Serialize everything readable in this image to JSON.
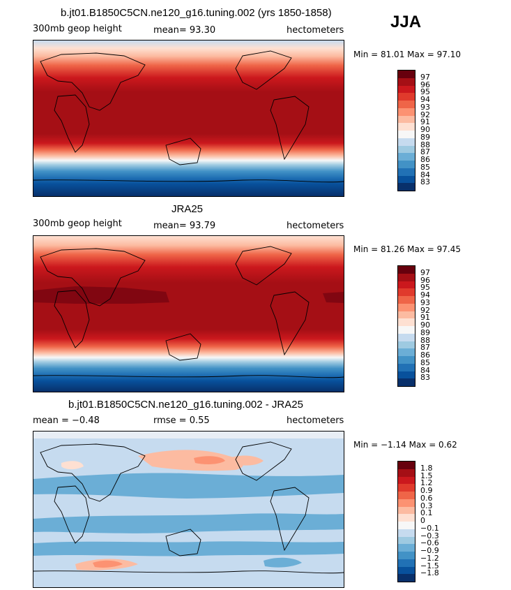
{
  "season": "JJA",
  "panels": [
    {
      "title": "b.jt01.B1850C5CN.ne120_g16.tuning.002 (yrs 1850-1858)",
      "left_label": "300mb geop height",
      "center_label": "mean=  93.30",
      "right_label": "hectometers",
      "minmax": "Min =  81.01 Max =  97.10",
      "colorbar_labels": [
        "97",
        "96",
        "95",
        "94",
        "93",
        "92",
        "91",
        "90",
        "89",
        "88",
        "87",
        "86",
        "85",
        "84",
        "83"
      ],
      "colorbar_colors": [
        "#67000d",
        "#a50f15",
        "#cb181d",
        "#e03a2c",
        "#ef6548",
        "#fc9272",
        "#fcbba1",
        "#fee0d2",
        "#f7f7f7",
        "#c6dbef",
        "#9ecae1",
        "#6baed6",
        "#4292c6",
        "#2171b5",
        "#08519c",
        "#08306b"
      ]
    },
    {
      "title": "JRA25",
      "left_label": "300mb geop height",
      "center_label": "mean=  93.79",
      "right_label": "hectometers",
      "minmax": "Min =  81.26 Max =  97.45",
      "colorbar_labels": [
        "97",
        "96",
        "95",
        "94",
        "93",
        "92",
        "91",
        "90",
        "89",
        "88",
        "87",
        "86",
        "85",
        "84",
        "83"
      ],
      "colorbar_colors": [
        "#67000d",
        "#a50f15",
        "#cb181d",
        "#e03a2c",
        "#ef6548",
        "#fc9272",
        "#fcbba1",
        "#fee0d2",
        "#f7f7f7",
        "#c6dbef",
        "#9ecae1",
        "#6baed6",
        "#4292c6",
        "#2171b5",
        "#08519c",
        "#08306b"
      ]
    },
    {
      "title": "b.jt01.B1850C5CN.ne120_g16.tuning.002 - JRA25",
      "left_label": "mean =  −0.48",
      "center_label": "rmse =   0.55",
      "right_label": "hectometers",
      "minmax": "Min =  −1.14 Max =   0.62",
      "colorbar_labels": [
        "1.8",
        "1.5",
        "1.2",
        "0.9",
        "0.6",
        "0.3",
        "0.1",
        "0",
        "−0.1",
        "−0.3",
        "−0.6",
        "−0.9",
        "−1.2",
        "−1.5",
        "−1.8"
      ],
      "colorbar_colors": [
        "#67000d",
        "#a50f15",
        "#cb181d",
        "#e03a2c",
        "#ef6548",
        "#fc9272",
        "#fcbba1",
        "#fee0d2",
        "#f7f7f7",
        "#c6dbef",
        "#9ecae1",
        "#6baed6",
        "#4292c6",
        "#2171b5",
        "#08519c",
        "#08306b"
      ]
    }
  ]
}
